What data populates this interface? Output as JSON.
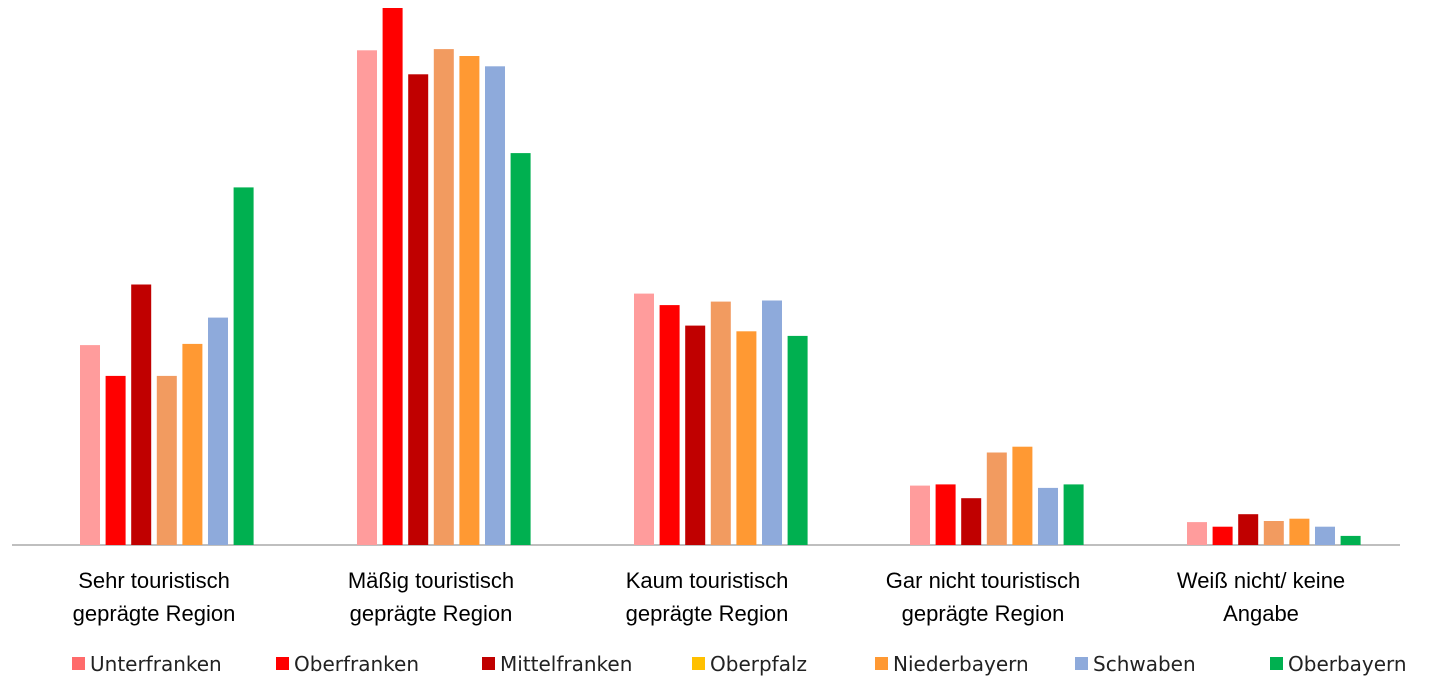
{
  "chart_data": {
    "type": "bar",
    "title": "",
    "xlabel": "",
    "ylabel": "",
    "grid": false,
    "legend_position": "bottom",
    "ylim": [
      0,
      47
    ],
    "categories": [
      [
        "Sehr touristisch",
        "geprägte Region"
      ],
      [
        "Mäßig touristisch",
        "geprägte Region"
      ],
      [
        "Kaum touristisch",
        "geprägte Region"
      ],
      [
        "Gar nicht touristisch",
        "geprägte Region"
      ],
      [
        "Weiß nicht/ keine",
        "Angabe"
      ]
    ],
    "series": [
      {
        "name": "Unterfranken",
        "color": "#ff9c9c",
        "values": [
          17.5,
          43.3,
          22.0,
          5.2,
          2.0
        ],
        "show_bar": true
      },
      {
        "name": "Oberfranken",
        "color": "#ff0000",
        "values": [
          14.8,
          47.0,
          21.0,
          5.3,
          1.6
        ],
        "show_bar": true
      },
      {
        "name": "Mittelfranken",
        "color": "#c00000",
        "values": [
          22.8,
          41.2,
          19.2,
          4.1,
          2.7
        ],
        "show_bar": true
      },
      {
        "name": "Oberpfalz",
        "color": "#ffc000",
        "values": [
          0,
          0,
          0,
          0,
          0
        ],
        "show_bar": false
      },
      {
        "name": "Niederbayern",
        "color": "#f29b60",
        "values": [
          14.8,
          43.4,
          21.3,
          8.1,
          2.1
        ],
        "show_bar": true
      },
      {
        "name": "Niederbayern",
        "color": "#ff9933",
        "values": [
          17.6,
          42.8,
          18.7,
          8.6,
          2.3
        ],
        "show_bar": true
      },
      {
        "name": "Schwaben",
        "color": "#8eaadb",
        "values": [
          19.9,
          41.9,
          21.4,
          5.0,
          1.6
        ],
        "show_bar": true
      },
      {
        "name": "Oberbayern",
        "color": "#00b050",
        "values": [
          31.3,
          34.3,
          18.3,
          5.3,
          0.8
        ],
        "show_bar": true
      }
    ],
    "legend": [
      {
        "label": "Unterfranken",
        "color": "#ff6b6b"
      },
      {
        "label": "Oberfranken",
        "color": "#ff0000"
      },
      {
        "label": "Mittelfranken",
        "color": "#c00000"
      },
      {
        "label": "Oberpfalz",
        "color": "#ffc000"
      },
      {
        "label": "Niederbayern",
        "color": "#ff9933"
      },
      {
        "label": "Schwaben",
        "color": "#8eaadb"
      },
      {
        "label": "Oberbayern",
        "color": "#00b050"
      }
    ]
  }
}
